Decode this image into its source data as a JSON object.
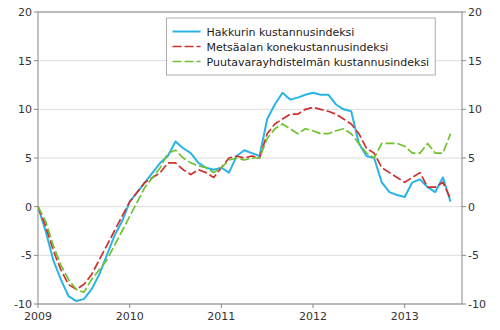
{
  "chart_data": {
    "type": "line",
    "x": [
      2009,
      2009.0833333333333,
      2009.1666666666667,
      2009.25,
      2009.3333333333333,
      2009.4166666666667,
      2009.5,
      2009.5833333333333,
      2009.6666666666667,
      2009.75,
      2009.8333333333333,
      2009.9166666666667,
      2010,
      2010.0833333333333,
      2010.1666666666667,
      2010.25,
      2010.3333333333333,
      2010.4166666666667,
      2010.5,
      2010.5833333333333,
      2010.6666666666667,
      2010.75,
      2010.8333333333333,
      2010.9166666666667,
      2011,
      2011.0833333333333,
      2011.1666666666667,
      2011.25,
      2011.3333333333333,
      2011.4166666666667,
      2011.5,
      2011.5833333333333,
      2011.6666666666667,
      2011.75,
      2011.8333333333333,
      2011.9166666666667,
      2012,
      2012.0833333333333,
      2012.1666666666667,
      2012.25,
      2012.3333333333333,
      2012.4166666666667,
      2012.5,
      2012.5833333333333,
      2012.6666666666667,
      2012.75,
      2012.8333333333333,
      2012.9166666666667,
      2013,
      2013.0833333333333,
      2013.1666666666667,
      2013.25,
      2013.3333333333333,
      2013.4166666666667,
      2013.5
    ],
    "series": [
      {
        "name": "Hakkurin kustannusindeksi",
        "color": "#29b4e8",
        "line_style": "solid",
        "values": [
          0.0,
          -2.5,
          -5.5,
          -7.5,
          -9.2,
          -9.7,
          -9.5,
          -8.5,
          -7.0,
          -5.0,
          -3.0,
          -1.5,
          0.5,
          1.5,
          2.5,
          3.5,
          4.5,
          5.2,
          6.7,
          6.0,
          5.5,
          4.5,
          4.0,
          3.8,
          4.0,
          3.5,
          5.2,
          5.8,
          5.5,
          5.2,
          9.0,
          10.5,
          11.7,
          11.0,
          11.2,
          11.5,
          11.7,
          11.5,
          11.5,
          10.5,
          10.0,
          9.8,
          6.5,
          5.2,
          5.0,
          2.5,
          1.5,
          1.2,
          1.0,
          2.5,
          2.8,
          2.0,
          1.5,
          3.0,
          0.5
        ]
      },
      {
        "name": "Metsäalan konekustannusindeksi",
        "color": "#d03030",
        "line_style": "dashed",
        "values": [
          0.0,
          -2.0,
          -4.5,
          -6.5,
          -8.0,
          -8.5,
          -8.0,
          -7.0,
          -5.5,
          -4.0,
          -2.5,
          -1.0,
          0.5,
          1.5,
          2.5,
          3.0,
          3.5,
          4.5,
          4.5,
          3.8,
          3.3,
          3.8,
          3.5,
          3.0,
          4.0,
          5.0,
          5.2,
          5.0,
          5.2,
          5.0,
          7.5,
          8.5,
          9.0,
          9.5,
          9.5,
          10.0,
          10.2,
          10.0,
          9.8,
          9.5,
          9.0,
          8.5,
          7.5,
          6.0,
          5.5,
          4.0,
          3.5,
          3.0,
          2.5,
          3.0,
          3.5,
          2.0,
          2.0,
          2.5,
          0.8
        ]
      },
      {
        "name": "Puutavarayhdistelmän kustannusindeksi",
        "color": "#70c030",
        "line_style": "dashed",
        "values": [
          0.0,
          -1.5,
          -4.0,
          -6.0,
          -7.5,
          -8.5,
          -8.8,
          -7.5,
          -6.5,
          -5.5,
          -4.0,
          -2.5,
          -1.0,
          0.5,
          2.0,
          3.0,
          4.0,
          5.5,
          5.8,
          5.0,
          4.5,
          4.2,
          4.0,
          3.5,
          4.0,
          4.8,
          5.0,
          4.8,
          5.0,
          5.0,
          7.0,
          8.0,
          8.5,
          8.0,
          7.5,
          8.0,
          7.8,
          7.5,
          7.5,
          7.8,
          8.0,
          7.5,
          6.5,
          5.5,
          5.0,
          6.5,
          6.5,
          6.5,
          6.2,
          5.5,
          5.5,
          6.5,
          5.5,
          5.5,
          7.5
        ]
      }
    ],
    "xlim": [
      2009,
      2013.625
    ],
    "xticks": [
      2009,
      2010,
      2011,
      2012,
      2013
    ],
    "ylim": [
      -10,
      20
    ],
    "yticks": [
      -10,
      -5,
      0,
      5,
      10,
      15,
      20
    ],
    "y2lim": [
      -10,
      20
    ],
    "y2ticks": [
      -10,
      -5,
      0,
      5,
      10,
      15,
      20
    ],
    "grid": true,
    "legend": "top"
  }
}
